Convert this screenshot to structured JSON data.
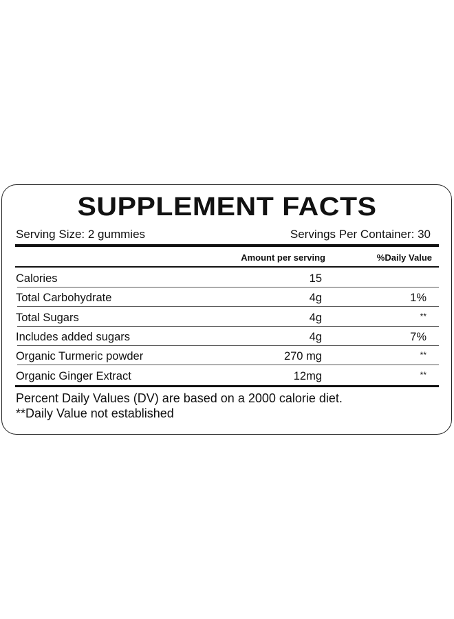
{
  "title": "SUPPLEMENT FACTS",
  "serving_size": "Serving Size:  2 gummies",
  "servings_per_container": "Servings Per Container: 30",
  "columns": {
    "amount": "Amount per serving",
    "daily_value": "%Daily Value"
  },
  "rows": [
    {
      "name": "Calories",
      "amount": "15",
      "dv": ""
    },
    {
      "name": "Total Carbohydrate",
      "amount": "4g",
      "dv": "1%"
    },
    {
      "name": "Total Sugars",
      "amount": "4g",
      "dv": "**"
    },
    {
      "name": "Includes added sugars",
      "amount": "4g",
      "dv": "7%"
    },
    {
      "name": "Organic Turmeric powder",
      "amount": "270 mg",
      "dv": "**"
    },
    {
      "name": "Organic Ginger Extract",
      "amount": "12mg",
      "dv": "**"
    }
  ],
  "footnotes": [
    "Percent Daily Values (DV) are based on a 2000 calorie diet.",
    "**Daily Value not established"
  ]
}
